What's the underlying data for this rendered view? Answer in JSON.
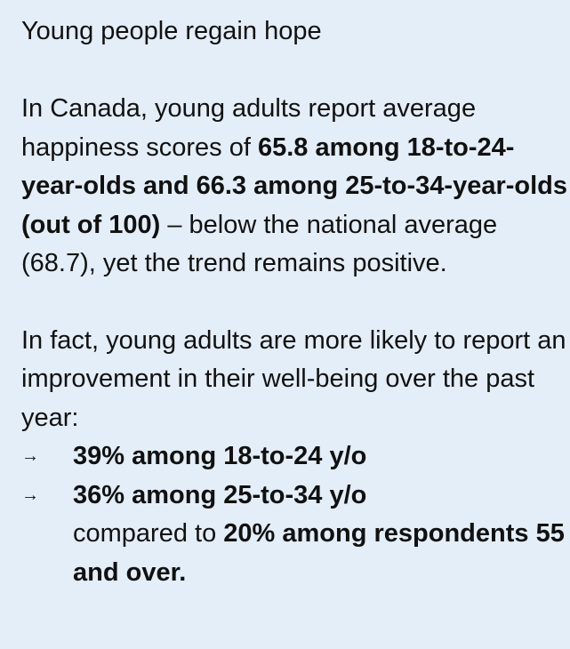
{
  "title": "Young people regain hope",
  "paragraph1": {
    "lead": "In Canada, young adults report average happiness scores of ",
    "bold": "65.8 among 18-to-24-year-olds and 66.3 among 25-to-34-year-olds (out of 100)",
    "tail": " – below the national average (68.7), yet the trend remains positive."
  },
  "paragraph2": {
    "text": "In fact, young adults are more likely to report an improvement in their well-being over the past year:"
  },
  "bullets": [
    {
      "arrow": "→",
      "bold": "39% among 18-to-24 y/o"
    },
    {
      "arrow": "→",
      "bold": "36% among 25-to-34 y/o",
      "regular": "compared to ",
      "bold2": "20% among respondents 55 and over."
    }
  ],
  "colors": {
    "background": "#e4eef8",
    "text": "#111111"
  }
}
